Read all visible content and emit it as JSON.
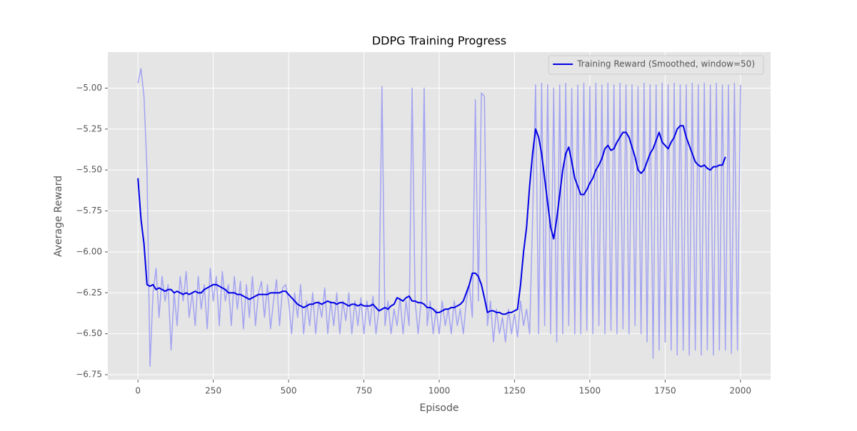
{
  "chart_data": {
    "type": "line",
    "title": "DDPG Training Progress",
    "x_label": "Episode",
    "y_label": "Average Reward",
    "grid": true,
    "legend": "upper right",
    "xlim": [
      -100,
      2100
    ],
    "ylim": [
      -6.78,
      -4.78
    ],
    "xticks": [
      0,
      250,
      500,
      750,
      1000,
      1250,
      1500,
      1750,
      2000
    ],
    "yticks": [
      {
        "value": -6.75,
        "label": "−6.75"
      },
      {
        "value": -6.5,
        "label": "−6.50"
      },
      {
        "value": -6.25,
        "label": "−6.25"
      },
      {
        "value": -6.0,
        "label": "−6.00"
      },
      {
        "value": -5.75,
        "label": "−5.75"
      },
      {
        "value": -5.5,
        "label": "−5.50"
      },
      {
        "value": -5.25,
        "label": "−5.25"
      },
      {
        "value": -5.0,
        "label": "−5.00"
      }
    ],
    "x": [
      0,
      10,
      20,
      30,
      40,
      50,
      60,
      70,
      80,
      90,
      100,
      110,
      120,
      130,
      140,
      150,
      160,
      170,
      180,
      190,
      200,
      210,
      220,
      230,
      240,
      250,
      260,
      270,
      280,
      290,
      300,
      310,
      320,
      330,
      340,
      350,
      360,
      370,
      380,
      390,
      400,
      410,
      420,
      430,
      440,
      450,
      460,
      470,
      480,
      490,
      500,
      510,
      520,
      530,
      540,
      550,
      560,
      570,
      580,
      590,
      600,
      610,
      620,
      630,
      640,
      650,
      660,
      670,
      680,
      690,
      700,
      710,
      720,
      730,
      740,
      750,
      760,
      770,
      780,
      790,
      800,
      810,
      820,
      830,
      840,
      850,
      860,
      870,
      880,
      890,
      900,
      910,
      920,
      930,
      940,
      950,
      960,
      970,
      980,
      990,
      1000,
      1010,
      1020,
      1030,
      1040,
      1050,
      1060,
      1070,
      1080,
      1090,
      1100,
      1110,
      1120,
      1130,
      1140,
      1150,
      1160,
      1170,
      1180,
      1190,
      1200,
      1210,
      1220,
      1230,
      1240,
      1250,
      1260,
      1270,
      1280,
      1290,
      1300,
      1310,
      1320,
      1330,
      1340,
      1350,
      1360,
      1370,
      1380,
      1390,
      1400,
      1410,
      1420,
      1430,
      1440,
      1450,
      1460,
      1470,
      1480,
      1490,
      1500,
      1510,
      1520,
      1530,
      1540,
      1550,
      1560,
      1570,
      1580,
      1590,
      1600,
      1610,
      1620,
      1630,
      1640,
      1650,
      1660,
      1670,
      1680,
      1690,
      1700,
      1710,
      1720,
      1730,
      1740,
      1750,
      1760,
      1770,
      1780,
      1790,
      1800,
      1810,
      1820,
      1830,
      1840,
      1850,
      1860,
      1870,
      1880,
      1890,
      1900,
      1910,
      1920,
      1930,
      1940,
      1950,
      1960,
      1970,
      1980,
      1990,
      2000
    ],
    "series": [
      {
        "color": "#a3a3f2",
        "values": [
          -4.97,
          -4.88,
          -5.05,
          -5.5,
          -6.7,
          -6.25,
          -6.1,
          -6.4,
          -6.15,
          -6.3,
          -6.2,
          -6.6,
          -6.25,
          -6.45,
          -6.15,
          -6.3,
          -6.12,
          -6.4,
          -6.25,
          -6.45,
          -6.15,
          -6.35,
          -6.2,
          -6.47,
          -6.1,
          -6.3,
          -6.15,
          -6.45,
          -6.12,
          -6.3,
          -6.2,
          -6.45,
          -6.15,
          -6.35,
          -6.18,
          -6.47,
          -6.2,
          -6.4,
          -6.15,
          -6.45,
          -6.25,
          -6.18,
          -6.4,
          -6.2,
          -6.47,
          -6.3,
          -6.17,
          -6.45,
          -6.22,
          -6.2,
          -6.3,
          -6.5,
          -6.25,
          -6.4,
          -6.2,
          -6.5,
          -6.3,
          -6.45,
          -6.25,
          -6.5,
          -6.3,
          -6.4,
          -6.22,
          -6.5,
          -6.3,
          -6.45,
          -6.25,
          -6.5,
          -6.3,
          -6.42,
          -6.25,
          -6.5,
          -6.3,
          -6.45,
          -6.28,
          -6.5,
          -6.3,
          -6.45,
          -6.27,
          -6.5,
          -6.35,
          -4.99,
          -6.45,
          -6.3,
          -6.5,
          -6.35,
          -6.45,
          -6.28,
          -6.5,
          -6.3,
          -6.45,
          -5.0,
          -6.3,
          -6.5,
          -6.3,
          -5.0,
          -6.45,
          -6.3,
          -6.5,
          -6.35,
          -6.5,
          -6.3,
          -6.45,
          -6.35,
          -6.5,
          -6.3,
          -6.45,
          -6.35,
          -6.5,
          -6.3,
          -6.2,
          -6.4,
          -5.07,
          -6.3,
          -5.03,
          -5.05,
          -6.45,
          -6.3,
          -6.55,
          -6.35,
          -6.5,
          -6.4,
          -6.55,
          -6.35,
          -6.5,
          -6.38,
          -6.52,
          -6.3,
          -6.45,
          -6.35,
          -6.5,
          -5.8,
          -4.98,
          -6.5,
          -4.97,
          -6.45,
          -4.98,
          -6.5,
          -5.0,
          -6.55,
          -4.98,
          -6.5,
          -4.97,
          -6.45,
          -5.0,
          -6.5,
          -4.98,
          -6.5,
          -4.97,
          -6.48,
          -4.99,
          -6.5,
          -4.97,
          -6.45,
          -4.98,
          -6.5,
          -4.97,
          -6.48,
          -4.98,
          -6.5,
          -4.97,
          -6.47,
          -4.98,
          -6.5,
          -4.98,
          -6.45,
          -4.99,
          -6.5,
          -4.97,
          -6.55,
          -4.98,
          -6.65,
          -4.98,
          -6.6,
          -4.97,
          -6.55,
          -4.98,
          -6.6,
          -4.97,
          -6.63,
          -4.98,
          -6.6,
          -4.98,
          -6.63,
          -4.97,
          -6.6,
          -4.98,
          -6.63,
          -4.97,
          -6.6,
          -4.98,
          -6.63,
          -4.97,
          -6.6,
          -4.98,
          -6.6,
          -4.98,
          -6.62,
          -4.97,
          -6.6,
          -4.98
        ]
      },
      {
        "name": "Training Reward (Smoothed, window=50)",
        "color": "#0000e6",
        "values": [
          -5.55,
          -5.8,
          -5.95,
          -6.2,
          -6.21,
          -6.2,
          -6.23,
          -6.22,
          -6.23,
          -6.24,
          -6.23,
          -6.23,
          -6.25,
          -6.24,
          -6.25,
          -6.26,
          -6.25,
          -6.26,
          -6.25,
          -6.24,
          -6.25,
          -6.25,
          -6.23,
          -6.22,
          -6.21,
          -6.2,
          -6.2,
          -6.21,
          -6.22,
          -6.23,
          -6.25,
          -6.25,
          -6.25,
          -6.26,
          -6.26,
          -6.27,
          -6.28,
          -6.29,
          -6.28,
          -6.27,
          -6.26,
          -6.26,
          -6.26,
          -6.26,
          -6.25,
          -6.25,
          -6.25,
          -6.25,
          -6.24,
          -6.24,
          -6.26,
          -6.28,
          -6.3,
          -6.32,
          -6.33,
          -6.34,
          -6.33,
          -6.32,
          -6.32,
          -6.31,
          -6.31,
          -6.32,
          -6.31,
          -6.3,
          -6.31,
          -6.31,
          -6.32,
          -6.31,
          -6.31,
          -6.32,
          -6.33,
          -6.32,
          -6.32,
          -6.33,
          -6.32,
          -6.33,
          -6.33,
          -6.33,
          -6.32,
          -6.34,
          -6.36,
          -6.35,
          -6.34,
          -6.35,
          -6.33,
          -6.32,
          -6.28,
          -6.29,
          -6.3,
          -6.28,
          -6.27,
          -6.3,
          -6.3,
          -6.31,
          -6.31,
          -6.32,
          -6.34,
          -6.34,
          -6.35,
          -6.37,
          -6.37,
          -6.36,
          -6.35,
          -6.35,
          -6.34,
          -6.34,
          -6.33,
          -6.32,
          -6.3,
          -6.25,
          -6.2,
          -6.13,
          -6.13,
          -6.15,
          -6.2,
          -6.28,
          -6.37,
          -6.36,
          -6.36,
          -6.37,
          -6.37,
          -6.38,
          -6.38,
          -6.37,
          -6.37,
          -6.36,
          -6.35,
          -6.2,
          -6.0,
          -5.85,
          -5.6,
          -5.4,
          -5.25,
          -5.3,
          -5.4,
          -5.55,
          -5.7,
          -5.85,
          -5.92,
          -5.8,
          -5.65,
          -5.5,
          -5.4,
          -5.36,
          -5.45,
          -5.55,
          -5.6,
          -5.65,
          -5.65,
          -5.62,
          -5.58,
          -5.55,
          -5.5,
          -5.47,
          -5.43,
          -5.37,
          -5.35,
          -5.38,
          -5.37,
          -5.33,
          -5.3,
          -5.27,
          -5.27,
          -5.3,
          -5.36,
          -5.42,
          -5.5,
          -5.52,
          -5.5,
          -5.45,
          -5.4,
          -5.37,
          -5.32,
          -5.27,
          -5.33,
          -5.35,
          -5.37,
          -5.33,
          -5.3,
          -5.25,
          -5.23,
          -5.23,
          -5.3,
          -5.35,
          -5.4,
          -5.45,
          -5.47,
          -5.48,
          -5.47,
          -5.49,
          -5.5,
          -5.48,
          -5.48,
          -5.47,
          -5.47,
          -5.42,
          null,
          null,
          null,
          null,
          null
        ]
      }
    ]
  }
}
